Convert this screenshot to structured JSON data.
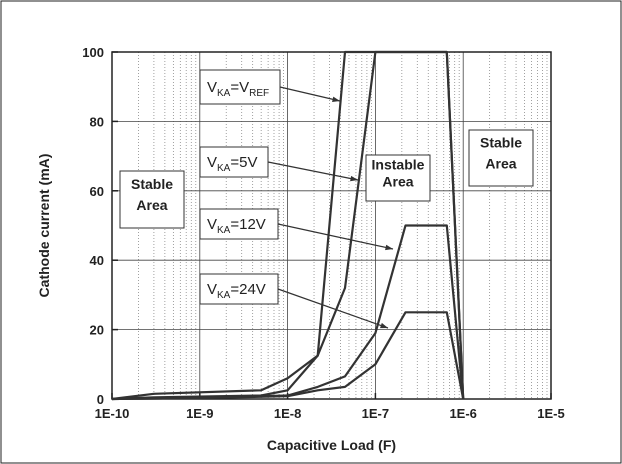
{
  "chart_data": {
    "type": "line",
    "xscale": "log",
    "xlabel": "Capacitive Load (F)",
    "ylabel": "Cathode current (mA)",
    "xlim": [
      1e-10,
      1e-05
    ],
    "ylim": [
      0,
      100
    ],
    "x_ticks": [
      {
        "value": 1e-10,
        "label": "1E-10"
      },
      {
        "value": 1e-09,
        "label": "1E-9"
      },
      {
        "value": 1e-08,
        "label": "1E-8"
      },
      {
        "value": 1e-07,
        "label": "1E-7"
      },
      {
        "value": 1e-06,
        "label": "1E-6"
      },
      {
        "value": 1e-05,
        "label": "1E-5"
      }
    ],
    "y_ticks": [
      {
        "value": 0,
        "label": "0"
      },
      {
        "value": 20,
        "label": "20"
      },
      {
        "value": 40,
        "label": "40"
      },
      {
        "value": 60,
        "label": "60"
      },
      {
        "value": 80,
        "label": "80"
      },
      {
        "value": 100,
        "label": "100"
      }
    ],
    "grid": true,
    "series": [
      {
        "name_main": "V",
        "name_sub": "KA",
        "name_rest": "=V",
        "name_sub2": "REF",
        "x": [
          1e-10,
          3e-10,
          5e-09,
          1e-08,
          2.2e-08,
          4.5e-08,
          6.5e-07,
          1e-06
        ],
        "y": [
          0,
          1.5,
          2.5,
          6,
          12.5,
          100,
          100,
          0
        ]
      },
      {
        "name_main": "V",
        "name_sub": "KA",
        "name_rest": "=5V",
        "x": [
          1e-10,
          3e-10,
          5e-09,
          1e-08,
          2.2e-08,
          4.5e-08,
          1e-07,
          6.5e-07,
          1e-06
        ],
        "y": [
          0,
          0.5,
          1,
          2.5,
          12.5,
          32,
          100,
          100,
          0
        ]
      },
      {
        "name_main": "V",
        "name_sub": "KA",
        "name_rest": "=12V",
        "x": [
          1e-10,
          1e-09,
          1e-08,
          2.2e-08,
          4.5e-08,
          1e-07,
          2.2e-07,
          6.5e-07,
          1e-06
        ],
        "y": [
          0,
          0.3,
          1,
          3.5,
          6.5,
          19,
          50,
          50,
          0
        ]
      },
      {
        "name_main": "V",
        "name_sub": "KA",
        "name_rest": "=24V",
        "x": [
          1e-10,
          1e-09,
          1e-08,
          2.2e-08,
          4.5e-08,
          1e-07,
          2.2e-07,
          6.5e-07,
          1e-06
        ],
        "y": [
          0,
          0.3,
          0.8,
          2.5,
          3.5,
          10,
          25,
          25,
          0
        ]
      }
    ],
    "annotations": {
      "stable_left": [
        "Stable",
        "Area"
      ],
      "instable": [
        "Instable",
        "Area"
      ],
      "stable_right": [
        "Stable",
        "Area"
      ]
    }
  }
}
